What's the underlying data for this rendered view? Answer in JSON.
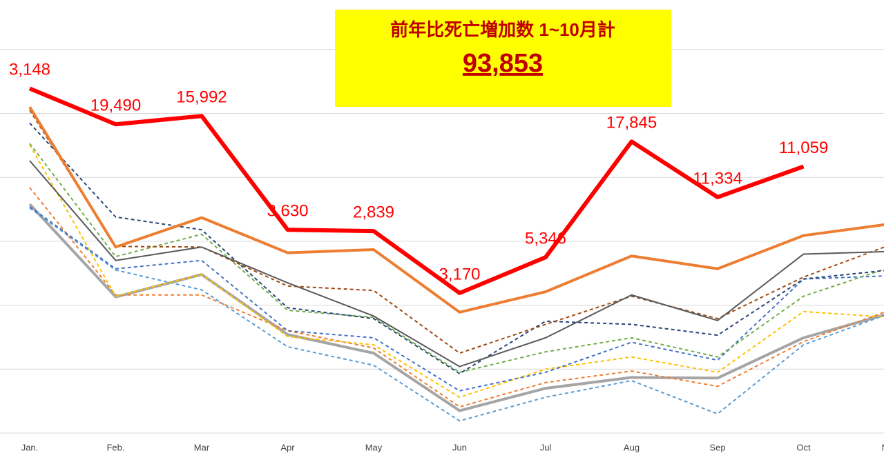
{
  "chart_data": {
    "type": "line",
    "categories": [
      "Jan.",
      "Feb.",
      "Mar",
      "Apr",
      "May",
      "Jun",
      "Jul",
      "Aug",
      "Sep",
      "Oct",
      "Nov"
    ],
    "ylim": [
      0,
      6.8
    ],
    "grid_y": [
      0,
      1,
      2,
      3,
      4,
      5,
      6
    ],
    "grid": true,
    "annotation_box": {
      "title": "前年比死亡増加数 1~10月計",
      "total": "93,853",
      "color": "#ffff00"
    },
    "series": [
      {
        "color": "#a5a5a5",
        "width": 4,
        "dashed": false,
        "values": [
          3.58,
          2.13,
          2.48,
          1.54,
          1.25,
          0.35,
          0.7,
          0.87,
          0.86,
          1.49,
          1.87
        ]
      },
      {
        "color": "#5b9bd5",
        "width": 2,
        "dashed": true,
        "values": [
          3.52,
          2.55,
          2.24,
          1.35,
          1.06,
          0.19,
          0.56,
          0.82,
          0.3,
          1.38,
          1.87
        ]
      },
      {
        "color": "#ed7d31",
        "width": 2,
        "dashed": true,
        "values": [
          3.84,
          2.16,
          2.16,
          1.6,
          1.33,
          0.41,
          0.79,
          0.97,
          0.73,
          1.43,
          1.92
        ]
      },
      {
        "color": "#ffc000",
        "width": 2,
        "dashed": true,
        "values": [
          4.51,
          2.14,
          2.48,
          1.51,
          1.38,
          0.56,
          1.0,
          1.19,
          0.95,
          1.9,
          1.81
        ]
      },
      {
        "color": "#4472c4",
        "width": 2,
        "dashed": true,
        "values": [
          3.54,
          2.57,
          2.7,
          1.6,
          1.49,
          0.66,
          0.95,
          1.42,
          1.14,
          2.41,
          2.46
        ]
      },
      {
        "color": "#70ad47",
        "width": 2,
        "dashed": true,
        "values": [
          4.53,
          2.76,
          3.11,
          1.92,
          1.81,
          0.95,
          1.27,
          1.49,
          1.19,
          2.14,
          2.59
        ]
      },
      {
        "color": "#264478",
        "width": 2,
        "dashed": true,
        "values": [
          4.85,
          3.38,
          3.18,
          1.96,
          1.79,
          0.93,
          1.75,
          1.7,
          1.53,
          2.41,
          2.55
        ]
      },
      {
        "color": "#9e480e",
        "width": 2,
        "dashed": true,
        "values": [
          5.05,
          2.92,
          2.91,
          2.3,
          2.23,
          1.25,
          1.7,
          2.14,
          1.79,
          2.44,
          2.94
        ]
      },
      {
        "color": "#595959",
        "width": 2,
        "dashed": false,
        "values": [
          4.26,
          2.7,
          2.91,
          2.35,
          1.83,
          1.04,
          1.49,
          2.16,
          1.76,
          2.8,
          2.84
        ]
      },
      {
        "color": "#ed7d31",
        "width": 4,
        "dashed": false,
        "values": [
          5.1,
          2.91,
          3.37,
          2.82,
          2.87,
          1.89,
          2.21,
          2.77,
          2.57,
          3.09,
          3.27
        ]
      },
      {
        "color": "#ff0000",
        "width": 6,
        "dashed": false,
        "values": [
          5.39,
          4.83,
          4.96,
          3.18,
          3.16,
          2.19,
          2.75,
          4.56,
          3.69,
          4.17,
          null
        ],
        "point_labels": [
          "3,148",
          "19,490",
          "15,992",
          "3,630",
          "2,839",
          "3,170",
          "5,346",
          "17,845",
          "11,334",
          "11,059",
          null
        ]
      }
    ]
  }
}
